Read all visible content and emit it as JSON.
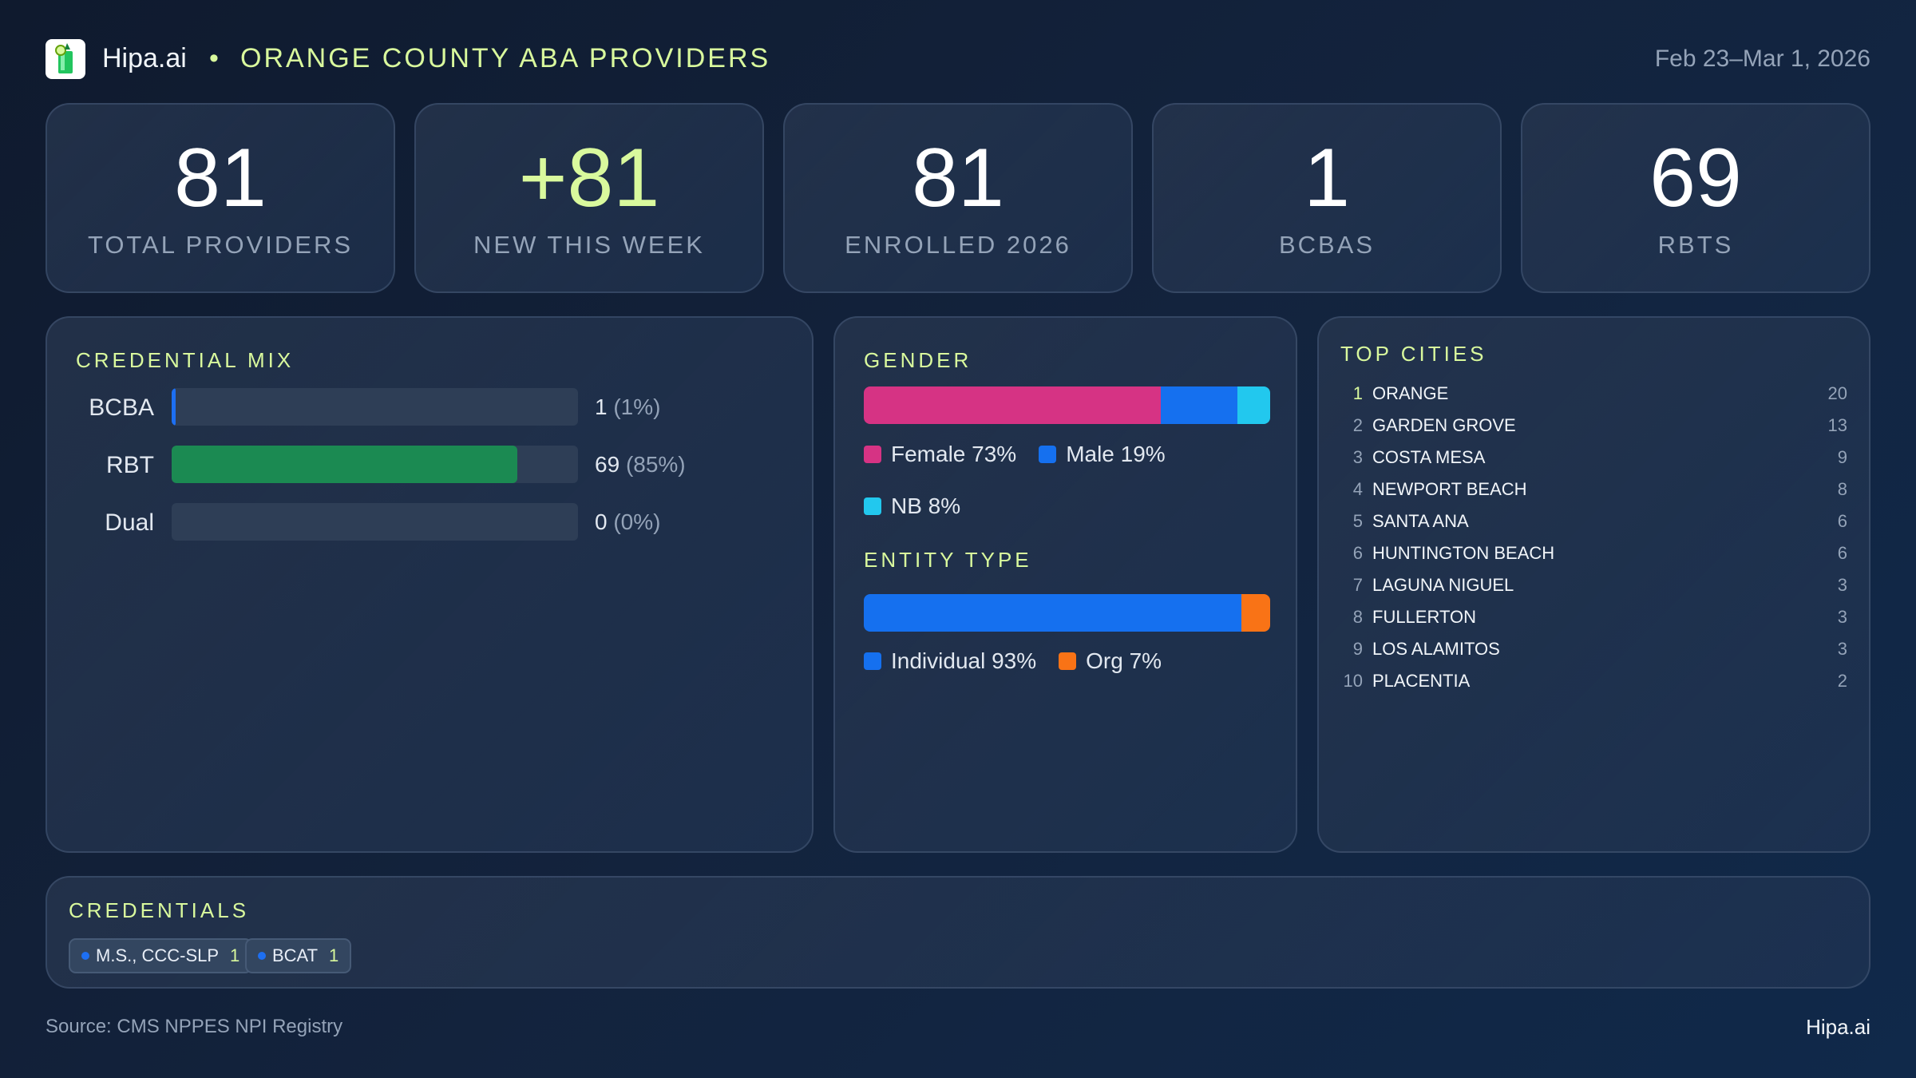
{
  "header": {
    "brand": "Hipa.ai",
    "separator": "•",
    "title": "ORANGE COUNTY ABA PROVIDERS",
    "date_range": "Feb 23–Mar 1, 2026"
  },
  "kpis": [
    {
      "value": "81",
      "label": "TOTAL PROVIDERS"
    },
    {
      "value": "+81",
      "label": "NEW THIS WEEK"
    },
    {
      "value": "81",
      "label": "ENROLLED 2026"
    },
    {
      "value": "1",
      "label": "BCBAS"
    },
    {
      "value": "69",
      "label": "RBTS"
    }
  ],
  "credential_mix": {
    "title": "CREDENTIAL MIX",
    "rows": [
      {
        "label": "BCBA",
        "count": "1",
        "pct": "(1%)",
        "fraction": 0.01,
        "color": "#1d6ff2"
      },
      {
        "label": "RBT",
        "count": "69",
        "pct": "(85%)",
        "fraction": 0.85,
        "color": "#1b8a52"
      },
      {
        "label": "Dual",
        "count": "0",
        "pct": "(0%)",
        "fraction": 0,
        "color": "#1d6ff2"
      }
    ]
  },
  "gender": {
    "title": "GENDER",
    "segments": [
      {
        "label": "Female 73%",
        "fraction": 0.73,
        "color": "#d63384"
      },
      {
        "label": "Male 19%",
        "fraction": 0.19,
        "color": "#1570ef"
      },
      {
        "label": "NB 8%",
        "fraction": 0.08,
        "color": "#22c8ee"
      }
    ]
  },
  "entity_type": {
    "title": "ENTITY TYPE",
    "segments": [
      {
        "label": "Individual 93%",
        "fraction": 0.93,
        "color": "#1570ef"
      },
      {
        "label": "Org 7%",
        "fraction": 0.07,
        "color": "#f97316"
      }
    ]
  },
  "top_cities": {
    "title": "TOP CITIES",
    "items": [
      {
        "rank": "1",
        "city": "ORANGE",
        "count": "20"
      },
      {
        "rank": "2",
        "city": "GARDEN GROVE",
        "count": "13"
      },
      {
        "rank": "3",
        "city": "COSTA MESA",
        "count": "9"
      },
      {
        "rank": "4",
        "city": "NEWPORT BEACH",
        "count": "8"
      },
      {
        "rank": "5",
        "city": "SANTA ANA",
        "count": "6"
      },
      {
        "rank": "6",
        "city": "HUNTINGTON BEACH",
        "count": "6"
      },
      {
        "rank": "7",
        "city": "LAGUNA NIGUEL",
        "count": "3"
      },
      {
        "rank": "8",
        "city": "FULLERTON",
        "count": "3"
      },
      {
        "rank": "9",
        "city": "LOS ALAMITOS",
        "count": "3"
      },
      {
        "rank": "10",
        "city": "PLACENTIA",
        "count": "2"
      }
    ]
  },
  "credentials": {
    "title": "CREDENTIALS",
    "chips": [
      {
        "label": "M.S., CCC-SLP",
        "count": "1"
      },
      {
        "label": "BCAT",
        "count": "1"
      }
    ]
  },
  "footer": {
    "source": "Source: CMS NPPES NPI Registry",
    "brand": "Hipa.ai"
  },
  "colors": {
    "accent": "#d9f99d",
    "background": "#0f1a2e",
    "card": "#243550"
  }
}
